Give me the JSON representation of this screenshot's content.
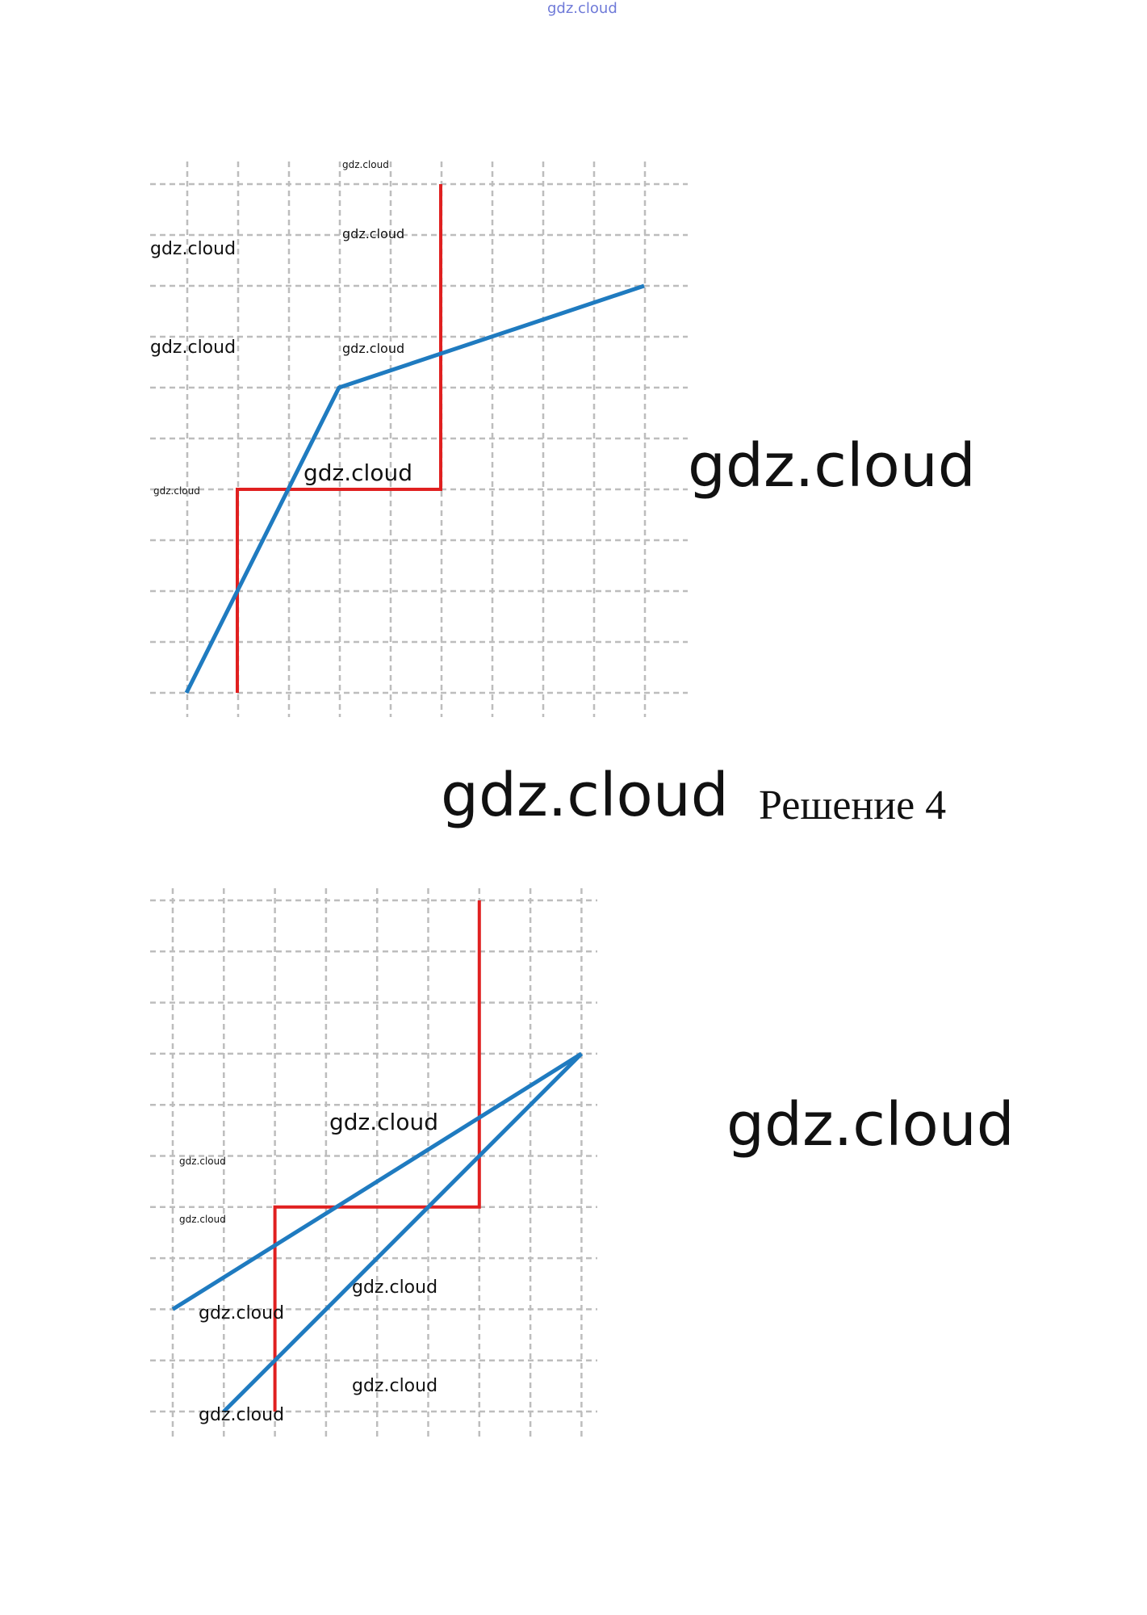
{
  "watermark": "gdz.cloud",
  "heading": "Решение 4",
  "colors": {
    "grid": "#bdbdbd",
    "red_line": "#e02020",
    "blue_line": "#1f7bc0"
  },
  "diagram_top": {
    "red_path": [
      [
        2,
        0
      ],
      [
        2,
        4
      ],
      [
        6,
        4
      ],
      [
        6,
        10
      ]
    ],
    "blue_path": [
      [
        1,
        0
      ],
      [
        4,
        6
      ],
      [
        10,
        8
      ]
    ]
  },
  "diagram_bottom": {
    "red_path": [
      [
        2,
        0
      ],
      [
        2,
        4
      ],
      [
        6,
        4
      ],
      [
        6,
        10
      ]
    ],
    "blue_path_1": [
      [
        0,
        2
      ],
      [
        8,
        7
      ]
    ],
    "blue_path_2": [
      [
        1,
        0
      ],
      [
        8,
        7
      ]
    ]
  }
}
